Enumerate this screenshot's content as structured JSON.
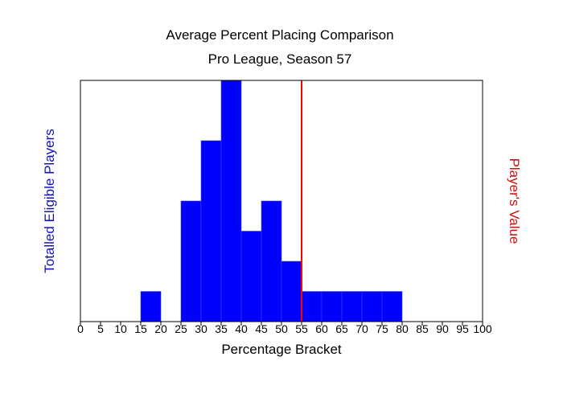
{
  "colors": {
    "bar_fill": "#0000ff",
    "bar_stroke": "#3f3fff",
    "player_line": "#ff0000",
    "left_axis_label": "#1010c0",
    "right_axis_label": "#cc1010",
    "frame": "#000000"
  },
  "chart_data": {
    "type": "bar",
    "title": "Average Percent Placing Comparison",
    "subtitle": "Pro League, Season 57",
    "xlabel": "Percentage Bracket",
    "ylabel_left": "Totalled Eligible Players",
    "ylabel_right": "Player's Value",
    "xlim": [
      0,
      100
    ],
    "ylim": [
      0,
      8
    ],
    "bin_width": 5,
    "x_ticks": [
      0,
      5,
      10,
      15,
      20,
      25,
      30,
      35,
      40,
      45,
      50,
      55,
      60,
      65,
      70,
      75,
      80,
      85,
      90,
      95,
      100
    ],
    "bins": [
      {
        "start": 15,
        "end": 20,
        "count": 1
      },
      {
        "start": 25,
        "end": 30,
        "count": 4
      },
      {
        "start": 30,
        "end": 35,
        "count": 6
      },
      {
        "start": 35,
        "end": 40,
        "count": 8
      },
      {
        "start": 40,
        "end": 45,
        "count": 3
      },
      {
        "start": 45,
        "end": 50,
        "count": 4
      },
      {
        "start": 50,
        "end": 55,
        "count": 2
      },
      {
        "start": 55,
        "end": 60,
        "count": 1
      },
      {
        "start": 60,
        "end": 65,
        "count": 1
      },
      {
        "start": 65,
        "end": 70,
        "count": 1
      },
      {
        "start": 70,
        "end": 75,
        "count": 1
      },
      {
        "start": 75,
        "end": 80,
        "count": 1
      }
    ],
    "player_value": 55,
    "grid": false,
    "legend": "none"
  }
}
